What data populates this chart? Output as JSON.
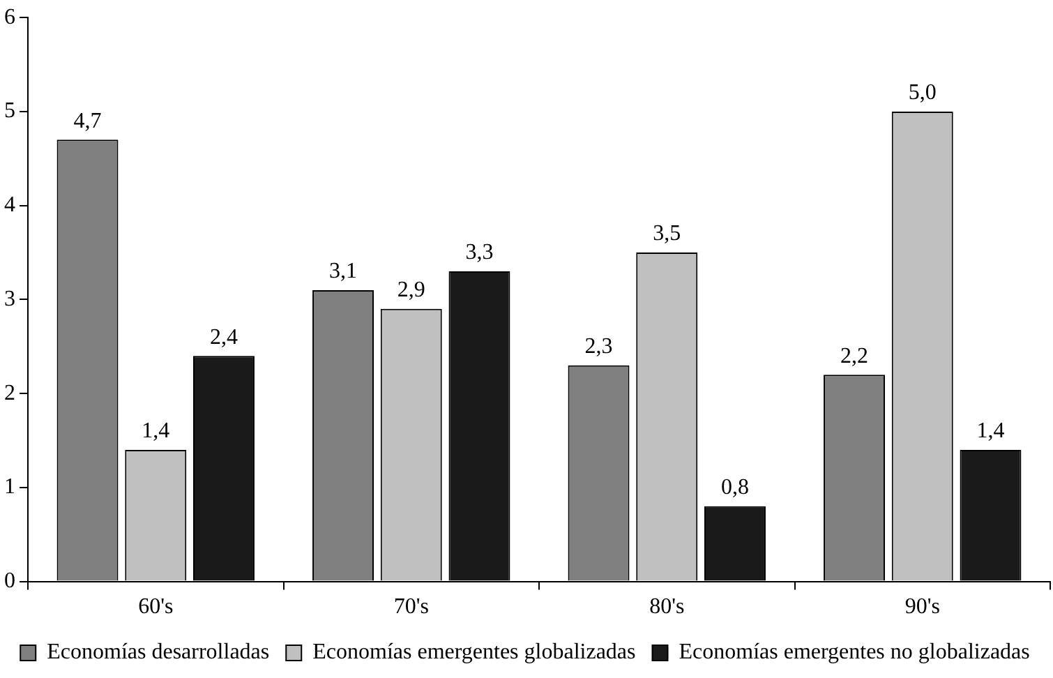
{
  "chart_data": {
    "type": "bar",
    "categories": [
      "60's",
      "70's",
      "80's",
      "90's"
    ],
    "series": [
      {
        "name": "Economías desarrolladas",
        "color": "#808080",
        "values": [
          4.7,
          3.1,
          2.3,
          2.2
        ],
        "value_labels": [
          "4,7",
          "3,1",
          "2,3",
          "2,2"
        ]
      },
      {
        "name": "Economías emergentes globalizadas",
        "color": "#c0c0c0",
        "values": [
          1.4,
          2.9,
          3.5,
          5.0
        ],
        "value_labels": [
          "1,4",
          "2,9",
          "3,5",
          "5,0"
        ]
      },
      {
        "name": "Economías emergentes no globalizadas",
        "color": "#1a1a1a",
        "values": [
          2.4,
          3.3,
          0.8,
          1.4
        ],
        "value_labels": [
          "2,4",
          "3,3",
          "0,8",
          "1,4"
        ]
      }
    ],
    "ylim": [
      0,
      6
    ],
    "yticks": [
      0,
      1,
      2,
      3,
      4,
      5,
      6
    ],
    "grid": false,
    "legend": "bottom"
  }
}
